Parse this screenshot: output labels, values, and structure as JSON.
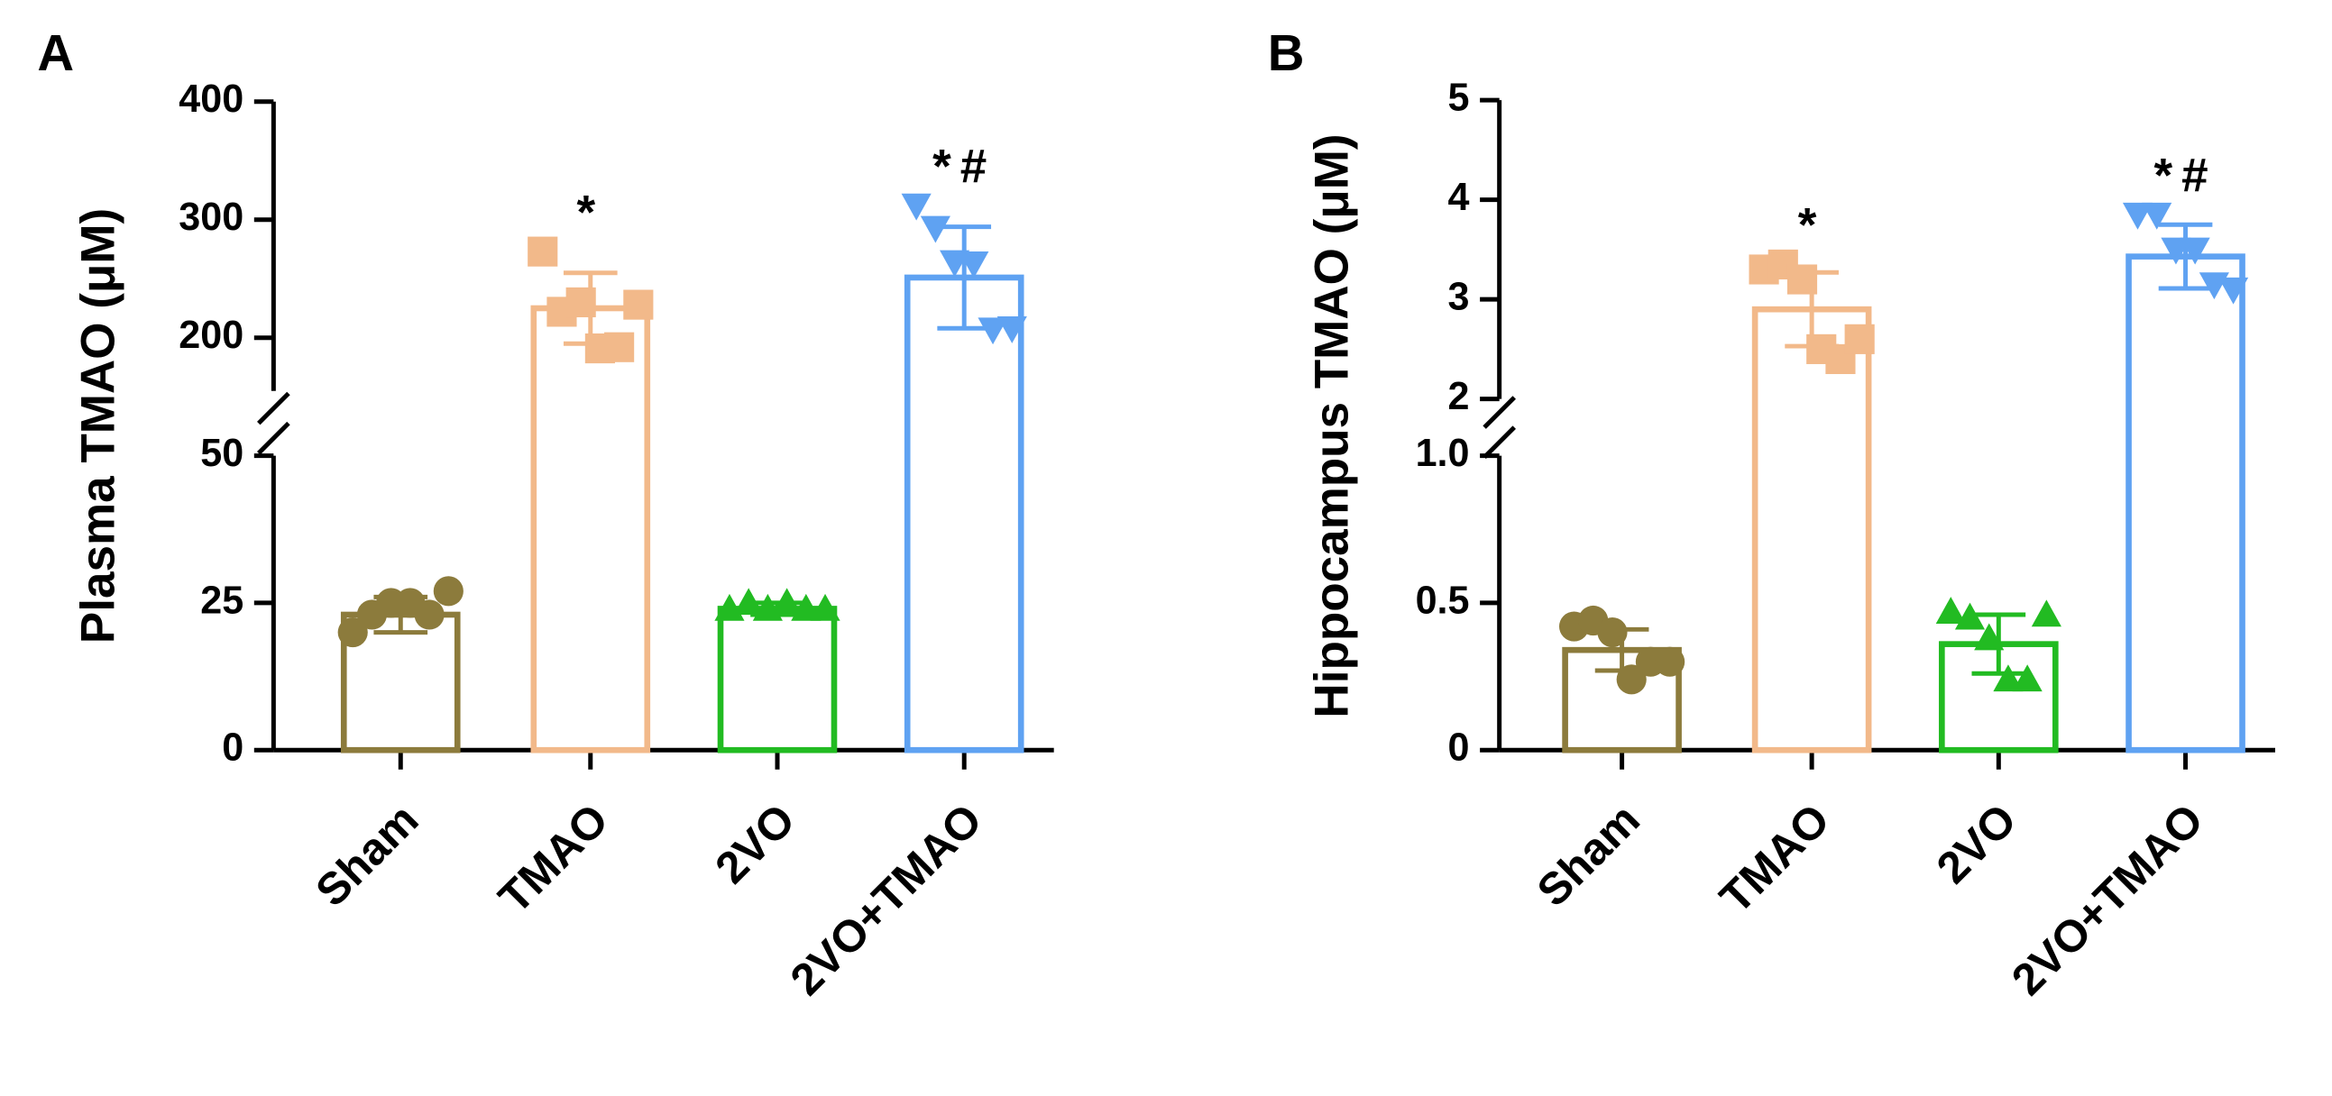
{
  "chart_data": [
    {
      "type": "bar",
      "panel_label": "A",
      "ylabel": "Plasma TMAO (μM)",
      "categories": [
        "Sham",
        "TMAO",
        "2VO",
        "2VO+TMAO"
      ],
      "values": [
        23,
        225,
        24,
        251
      ],
      "errors": [
        3,
        30,
        1,
        43
      ],
      "points": [
        [
          20,
          23,
          25,
          25,
          23,
          27
        ],
        [
          273,
          222,
          230,
          191,
          192,
          228
        ],
        [
          24,
          25,
          24,
          25,
          24,
          24
        ],
        [
          312,
          293,
          264,
          263,
          207,
          208
        ]
      ],
      "colors": [
        "#8c7b3c",
        "#f2b98a",
        "#22bb22",
        "#5fa2f2"
      ],
      "markers": [
        "circle",
        "square",
        "triangle-up",
        "triangle-down"
      ],
      "y_segments": [
        {
          "ylim": [
            0,
            50
          ],
          "yticks": [
            0,
            25,
            50
          ]
        },
        {
          "ylim": [
            155,
            400
          ],
          "yticks": [
            200,
            300,
            400
          ]
        }
      ],
      "annotations": [
        {
          "index": 1,
          "text": "*"
        },
        {
          "index": 3,
          "text": "*#"
        }
      ]
    },
    {
      "type": "bar",
      "panel_label": "B",
      "ylabel": "Hippocampus TMAO (μM)",
      "categories": [
        "Sham",
        "TMAO",
        "2VO",
        "2VO+TMAO"
      ],
      "values": [
        0.34,
        2.9,
        0.36,
        3.43
      ],
      "errors": [
        0.07,
        0.37,
        0.1,
        0.32
      ],
      "points": [
        [
          0.42,
          0.44,
          0.4,
          0.24,
          0.3,
          0.3
        ],
        [
          3.3,
          3.35,
          3.2,
          2.5,
          2.4,
          2.6
        ],
        [
          0.47,
          0.45,
          0.38,
          0.24,
          0.24,
          0.46
        ],
        [
          3.85,
          3.85,
          3.5,
          3.5,
          3.15,
          3.1
        ]
      ],
      "colors": [
        "#8c7b3c",
        "#f2b98a",
        "#22bb22",
        "#5fa2f2"
      ],
      "markers": [
        "circle",
        "square",
        "triangle-up",
        "triangle-down"
      ],
      "y_segments": [
        {
          "ylim": [
            0,
            1
          ],
          "yticks": [
            0,
            {
              "value": 0.5,
              "label": "0.5"
            },
            {
              "value": 1,
              "label": "1.0"
            }
          ]
        },
        {
          "ylim": [
            2,
            5
          ],
          "yticks": [
            2,
            3,
            4,
            5
          ]
        }
      ],
      "annotations": [
        {
          "index": 1,
          "text": "*"
        },
        {
          "index": 3,
          "text": "*#"
        }
      ]
    }
  ]
}
